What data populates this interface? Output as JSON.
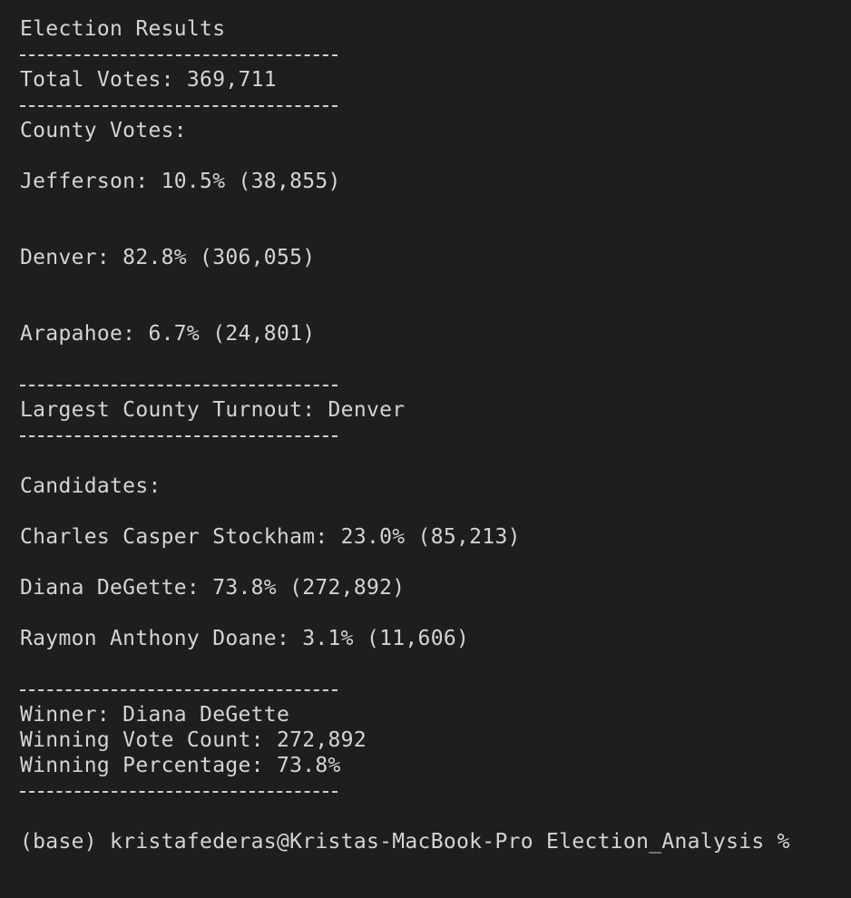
{
  "results": {
    "title": "Election Results",
    "total_votes_label": "Total Votes: 369,711",
    "county_votes_heading": "County Votes:",
    "counties": [
      {
        "text": "Jefferson: 10.5% (38,855)"
      },
      {
        "text": "Denver: 82.8% (306,055)"
      },
      {
        "text": "Arapahoe: 6.7% (24,801)"
      }
    ],
    "largest_county_turnout": "Largest County Turnout: Denver",
    "candidates_heading": "Candidates:",
    "candidates": [
      {
        "text": "Charles Casper Stockham: 23.0% (85,213)"
      },
      {
        "text": "Diana DeGette: 73.8% (272,892)"
      },
      {
        "text": "Raymon Anthony Doane: 3.1% (11,606)"
      }
    ],
    "winner": "Winner: Diana DeGette",
    "winning_vote_count": "Winning Vote Count: 272,892",
    "winning_percentage": "Winning Percentage: 73.8%"
  },
  "prompt": {
    "text": "(base) kristafederas@Kristas-MacBook-Pro Election_Analysis %"
  }
}
